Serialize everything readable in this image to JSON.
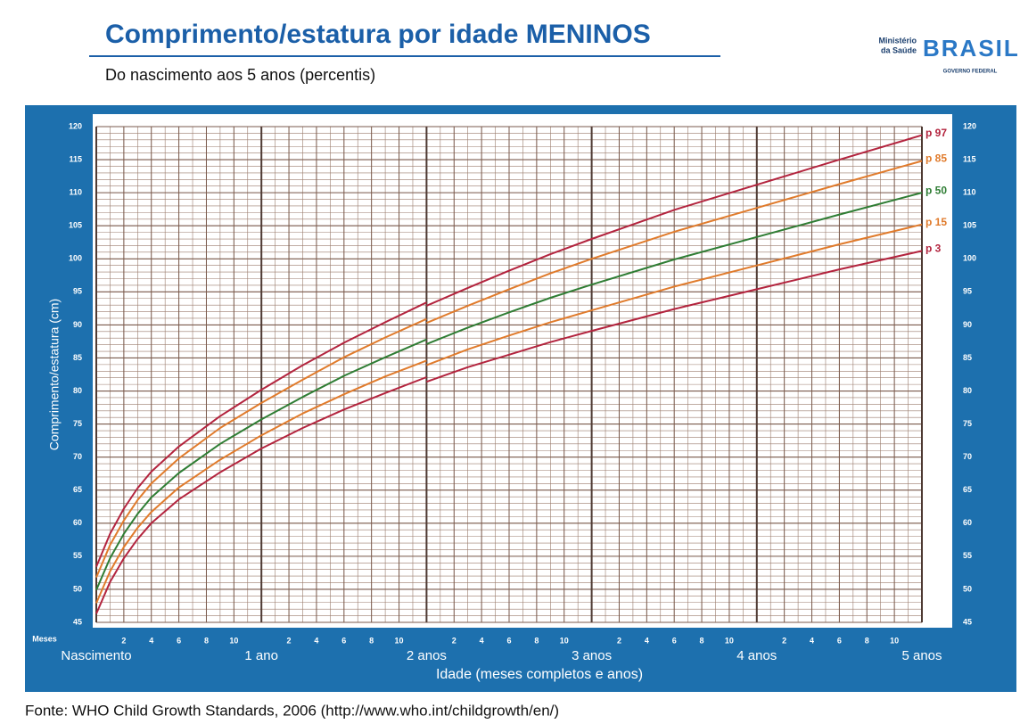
{
  "chart_data": {
    "type": "line",
    "title": "Comprimento/estatura por idade MENINOS",
    "subtitle": "Do nascimento aos 5 anos (percentis)",
    "logo": {
      "ministry": [
        "Ministério",
        "da Saúde"
      ],
      "brand": "BRASIL",
      "government": "GOVERNO FEDERAL"
    },
    "y_label": "Comprimento/estatura (cm)",
    "x_label": "Idade (meses completos e anos)",
    "x_unit_label": "Meses",
    "source": "Fonte: WHO Child Growth Standards, 2006 (http://www.who.int/childgrowth/en/)",
    "xlim": [
      0,
      60
    ],
    "ylim": [
      45,
      120
    ],
    "yticks": [
      45,
      50,
      55,
      60,
      65,
      70,
      75,
      80,
      85,
      90,
      95,
      100,
      105,
      110,
      115,
      120
    ],
    "xticks": [
      {
        "value": 2,
        "label": "2"
      },
      {
        "value": 4,
        "label": "4"
      },
      {
        "value": 6,
        "label": "6"
      },
      {
        "value": 8,
        "label": "8"
      },
      {
        "value": 10,
        "label": "10"
      },
      {
        "value": 14,
        "label": "2"
      },
      {
        "value": 16,
        "label": "4"
      },
      {
        "value": 18,
        "label": "6"
      },
      {
        "value": 20,
        "label": "8"
      },
      {
        "value": 22,
        "label": "10"
      },
      {
        "value": 26,
        "label": "2"
      },
      {
        "value": 28,
        "label": "4"
      },
      {
        "value": 30,
        "label": "6"
      },
      {
        "value": 32,
        "label": "8"
      },
      {
        "value": 34,
        "label": "10"
      },
      {
        "value": 38,
        "label": "2"
      },
      {
        "value": 40,
        "label": "4"
      },
      {
        "value": 42,
        "label": "6"
      },
      {
        "value": 44,
        "label": "8"
      },
      {
        "value": 46,
        "label": "10"
      },
      {
        "value": 50,
        "label": "2"
      },
      {
        "value": 52,
        "label": "4"
      },
      {
        "value": 54,
        "label": "6"
      },
      {
        "value": 56,
        "label": "8"
      },
      {
        "value": 58,
        "label": "10"
      }
    ],
    "year_ticks": [
      {
        "value": 0,
        "label": "Nascimento"
      },
      {
        "value": 12,
        "label": "1 ano"
      },
      {
        "value": 24,
        "label": "2 anos"
      },
      {
        "value": 36,
        "label": "3 anos"
      },
      {
        "value": 48,
        "label": "4 anos"
      },
      {
        "value": 60,
        "label": "5 anos"
      }
    ],
    "grid": true,
    "x": [
      0,
      1,
      2,
      3,
      4,
      6,
      9,
      12,
      15,
      18,
      21,
      24,
      24,
      24,
      27,
      30,
      33,
      36,
      42,
      48,
      54,
      60
    ],
    "series": [
      {
        "name": "p 97",
        "color": "#b3243e",
        "values": [
          53.4,
          58.4,
          62.2,
          65.3,
          67.8,
          71.6,
          76.2,
          80.2,
          83.9,
          87.3,
          90.4,
          93.4,
          null,
          92.9,
          95.6,
          98.2,
          100.7,
          103.0,
          107.4,
          111.2,
          115.0,
          118.7
        ]
      },
      {
        "name": "p 85",
        "color": "#e07b2c",
        "values": [
          51.8,
          56.7,
          60.4,
          63.5,
          66.0,
          69.8,
          74.4,
          78.2,
          81.7,
          85.1,
          88.1,
          90.9,
          null,
          90.3,
          92.9,
          95.4,
          97.8,
          100.0,
          104.1,
          107.7,
          111.3,
          114.8
        ]
      },
      {
        "name": "p 50",
        "color": "#2f7d34",
        "values": [
          49.9,
          54.7,
          58.4,
          61.4,
          63.9,
          67.6,
          72.0,
          75.7,
          79.1,
          82.3,
          85.1,
          87.8,
          null,
          87.1,
          89.6,
          91.9,
          94.1,
          96.1,
          99.9,
          103.3,
          106.7,
          110.0
        ]
      },
      {
        "name": "p 15",
        "color": "#e07b2c",
        "values": [
          47.9,
          52.7,
          56.4,
          59.3,
          61.7,
          65.4,
          69.6,
          73.3,
          76.6,
          79.5,
          82.2,
          84.6,
          null,
          83.9,
          86.3,
          88.4,
          90.4,
          92.2,
          95.8,
          99.0,
          102.2,
          105.2
        ]
      },
      {
        "name": "p 3",
        "color": "#b3243e",
        "values": [
          46.3,
          51.1,
          54.7,
          57.6,
          60.0,
          63.6,
          67.7,
          71.3,
          74.4,
          77.2,
          79.7,
          82.1,
          null,
          81.4,
          83.6,
          85.5,
          87.4,
          89.1,
          92.4,
          95.4,
          98.4,
          101.2
        ]
      }
    ]
  }
}
